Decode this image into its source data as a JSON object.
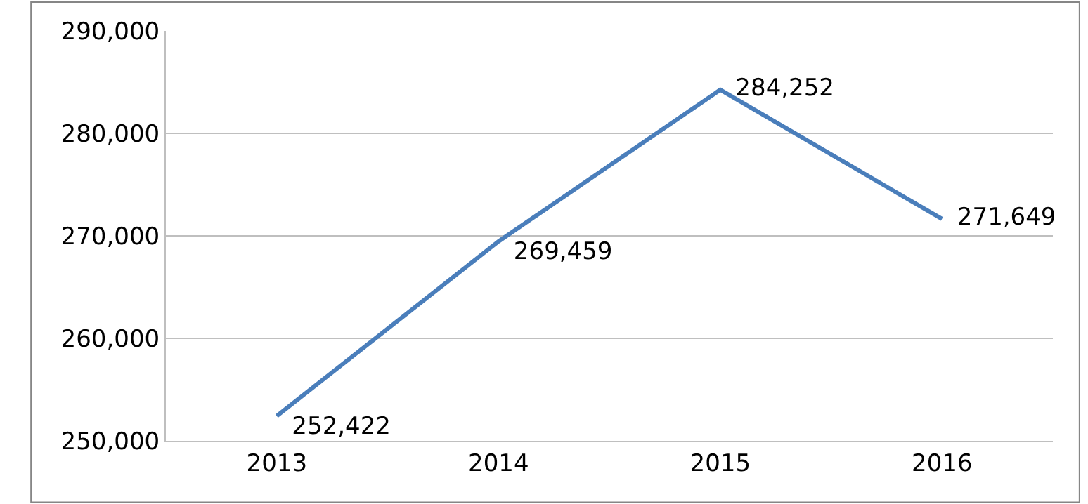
{
  "chart_data": {
    "type": "line",
    "categories": [
      "2013",
      "2014",
      "2015",
      "2016"
    ],
    "series": [
      {
        "color": "#4a7ebb",
        "values": [
          252422,
          269459,
          284252,
          271649
        ]
      }
    ],
    "value_labels": [
      "252,422",
      "269,459",
      "284,252",
      "271,649"
    ],
    "ylim": [
      250000,
      290000
    ],
    "yticks": [
      {
        "value": 250000,
        "label": "250,000"
      },
      {
        "value": 260000,
        "label": "260,000"
      },
      {
        "value": 270000,
        "label": "270,000"
      },
      {
        "value": 280000,
        "label": "280,000"
      },
      {
        "value": 290000,
        "label": "290,000"
      }
    ],
    "grid": "y",
    "marker": "none",
    "line_style": "solid"
  }
}
